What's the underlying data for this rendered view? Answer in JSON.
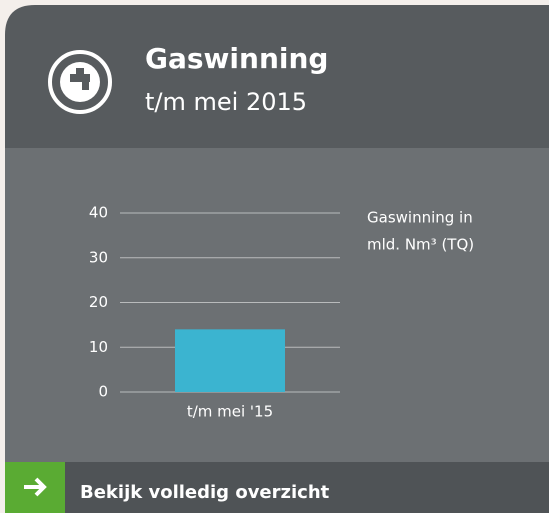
{
  "header": {
    "title": "Gaswinning",
    "subtitle": "t/m mei 2015"
  },
  "chart_data": {
    "type": "bar",
    "categories": [
      "t/m mei '15"
    ],
    "values": [
      14
    ],
    "color": "#3bb4d0",
    "ylim": [
      0,
      40
    ],
    "yticks": [
      0,
      10,
      20,
      30,
      40
    ],
    "grid": true,
    "unit_label": [
      "Gaswinning in",
      "mld. Nm³ (TQ)"
    ]
  },
  "footer": {
    "link": "Bekijk volledig overzicht"
  }
}
